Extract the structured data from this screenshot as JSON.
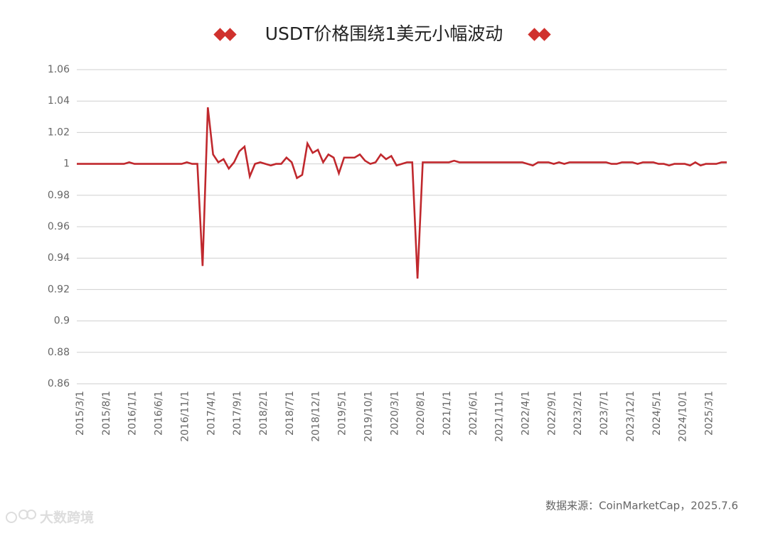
{
  "chart_data": {
    "type": "line",
    "title": "USDT价格围绕1美元小幅波动",
    "source": "数据来源：CoinMarketCap，2025.7.6",
    "watermark": "大数跨境",
    "color": "#c0282d",
    "categories": [
      "2015/3/1",
      null,
      null,
      null,
      null,
      "2015/8/1",
      null,
      null,
      null,
      null,
      "2016/1/1",
      null,
      null,
      null,
      null,
      "2016/6/1",
      null,
      null,
      null,
      null,
      "2016/11/1",
      null,
      null,
      null,
      null,
      "2017/4/1",
      null,
      null,
      null,
      null,
      "2017/9/1",
      null,
      null,
      null,
      null,
      "2018/2/1",
      null,
      null,
      null,
      null,
      "2018/7/1",
      null,
      null,
      null,
      null,
      "2018/12/1",
      null,
      null,
      null,
      null,
      "2019/5/1",
      null,
      null,
      null,
      null,
      "2019/10/1",
      null,
      null,
      null,
      null,
      "2020/3/1",
      null,
      null,
      null,
      null,
      "2020/8/1",
      null,
      null,
      null,
      null,
      "2021/1/1",
      null,
      null,
      null,
      null,
      "2021/6/1",
      null,
      null,
      null,
      null,
      "2021/11/1",
      null,
      null,
      null,
      null,
      "2022/4/1",
      null,
      null,
      null,
      null,
      "2022/9/1",
      null,
      null,
      null,
      null,
      "2023/2/1",
      null,
      null,
      null,
      null,
      "2023/7/1",
      null,
      null,
      null,
      null,
      "2023/12/1",
      null,
      null,
      null,
      null,
      "2024/5/1",
      null,
      null,
      null,
      null,
      "2024/10/1",
      null,
      null,
      null,
      null,
      "2025/3/1",
      null,
      null,
      null,
      null
    ],
    "values": [
      1,
      1,
      1,
      1,
      1,
      1,
      1,
      1,
      1,
      1,
      1.001,
      1,
      1,
      1,
      1,
      1,
      1,
      1,
      1,
      1,
      1,
      1.001,
      1,
      1,
      0.935,
      1.036,
      1.006,
      1.001,
      1.003,
      0.997,
      1.001,
      1.008,
      1.011,
      0.992,
      1,
      1.001,
      1,
      0.999,
      1,
      1,
      1.004,
      1.001,
      0.991,
      0.993,
      1.013,
      1.007,
      1.009,
      1.001,
      1.006,
      1.004,
      0.994,
      1.004,
      1.004,
      1.004,
      1.006,
      1.002,
      1,
      1.001,
      1.006,
      1.003,
      1.005,
      0.999,
      1,
      1.001,
      1.001,
      0.927,
      1.001,
      1.001,
      1.001,
      1.001,
      1.001,
      1.001,
      1.002,
      1.001,
      1.001,
      1.001,
      1.001,
      1.001,
      1.001,
      1.001,
      1.001,
      1.001,
      1.001,
      1.001,
      1.001,
      1.001,
      1,
      0.999,
      1.001,
      1.001,
      1.001,
      1,
      1.001,
      1,
      1.001,
      1.001,
      1.001,
      1.001,
      1.001,
      1.001,
      1.001,
      1.001,
      1,
      1,
      1.001,
      1.001,
      1.001,
      1,
      1.001,
      1.001,
      1.001,
      1,
      1,
      0.999,
      1,
      1,
      1,
      0.999,
      1.001,
      0.999,
      1,
      1,
      1,
      1.001,
      1.001
    ],
    "ylim": [
      0.86,
      1.06
    ],
    "yticks": [
      0.86,
      0.88,
      0.9,
      0.92,
      0.94,
      0.96,
      0.98,
      1,
      1.02,
      1.04,
      1.06
    ],
    "grid": true
  }
}
